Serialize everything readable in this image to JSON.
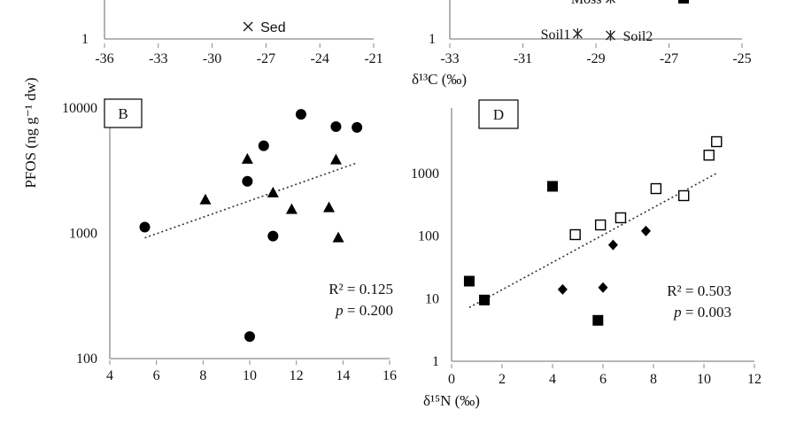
{
  "shared_labels": {
    "ylabel": "PFOS  (ng g⁻¹ dw)"
  },
  "chart_data": [
    {
      "panel": "top-left (partial)",
      "type": "scatter",
      "xlim": [
        -36,
        -21
      ],
      "xticks": [
        "-36",
        "-33",
        "-30",
        "-27",
        "-24",
        "-21"
      ],
      "yticks_visible": [
        "1"
      ],
      "annotations": [
        {
          "label": "Sed",
          "marker": "x",
          "x": -28.0,
          "y": 1.6
        }
      ]
    },
    {
      "panel": "top-right (partial)",
      "type": "scatter",
      "xlim": [
        -33,
        -25
      ],
      "xticks": [
        "-33",
        "-31",
        "-29",
        "-27",
        "-25"
      ],
      "yticks_visible": [
        "1"
      ],
      "xlabel": "δ¹³C (‰)",
      "annotations": [
        {
          "label": "Soil1",
          "marker": "asterisk",
          "x": -29.5,
          "y": 1.15
        },
        {
          "label": "Soil2",
          "marker": "asterisk",
          "x": -28.6,
          "y": 1.1
        },
        {
          "label": "Moss",
          "marker": "asterisk",
          "x": -28.6,
          "y": 4.6,
          "clipped": true
        }
      ],
      "extra_points": [
        {
          "marker": "square-filled",
          "x": -26.6,
          "y": 4.6,
          "clipped": true
        }
      ]
    },
    {
      "panel": "B",
      "type": "scatter",
      "log_y": true,
      "xlim": [
        4,
        16
      ],
      "ylim": [
        100,
        10000
      ],
      "xticks": [
        "4",
        "6",
        "8",
        "10",
        "12",
        "14",
        "16"
      ],
      "yticks": [
        "100",
        "1000",
        "10000"
      ],
      "series": [
        {
          "marker": "circle",
          "points": [
            [
              5.5,
              1120
            ],
            [
              9.9,
              2600
            ],
            [
              10.6,
              5000
            ],
            [
              11.0,
              950
            ],
            [
              12.2,
              8900
            ],
            [
              13.7,
              7100
            ],
            [
              14.6,
              7000
            ],
            [
              10.0,
              150
            ]
          ]
        },
        {
          "marker": "triangle",
          "points": [
            [
              8.1,
              1850
            ],
            [
              9.9,
              3900
            ],
            [
              11.0,
              2100
            ],
            [
              11.8,
              1550
            ],
            [
              13.4,
              1600
            ],
            [
              13.7,
              3850
            ],
            [
              13.8,
              920
            ]
          ]
        }
      ],
      "trend": {
        "x": [
          5.5,
          14.6
        ],
        "y": [
          920,
          3650
        ]
      },
      "stats": {
        "r2": "R² = 0.125",
        "p_prefix": "p",
        "p_suffix": " = 0.200"
      }
    },
    {
      "panel": "D",
      "type": "scatter",
      "log_y": true,
      "xlim": [
        0,
        12
      ],
      "ylim": [
        1,
        10000
      ],
      "xticks": [
        "0",
        "2",
        "4",
        "6",
        "8",
        "10",
        "12"
      ],
      "yticks": [
        "1",
        "10",
        "100",
        "1000"
      ],
      "xlabel": "δ¹⁵N (‰)",
      "series": [
        {
          "marker": "square-open",
          "points": [
            [
              4.9,
              105
            ],
            [
              5.9,
              150
            ],
            [
              6.7,
              195
            ],
            [
              8.1,
              570
            ],
            [
              9.2,
              440
            ],
            [
              10.2,
              1950
            ],
            [
              10.5,
              3200
            ]
          ]
        },
        {
          "marker": "square-filled",
          "points": [
            [
              0.7,
              19
            ],
            [
              1.3,
              9.5
            ],
            [
              4.0,
              620
            ],
            [
              5.8,
              4.5
            ]
          ]
        },
        {
          "marker": "diamond",
          "points": [
            [
              4.4,
              14
            ],
            [
              6.0,
              15
            ],
            [
              6.4,
              72
            ],
            [
              7.7,
              120
            ]
          ]
        }
      ],
      "trend": {
        "x": [
          0.7,
          10.5
        ],
        "y": [
          7.2,
          1000
        ]
      },
      "stats": {
        "r2": "R² = 0.503",
        "p_prefix": "p",
        "p_suffix": " = 0.003"
      }
    }
  ]
}
